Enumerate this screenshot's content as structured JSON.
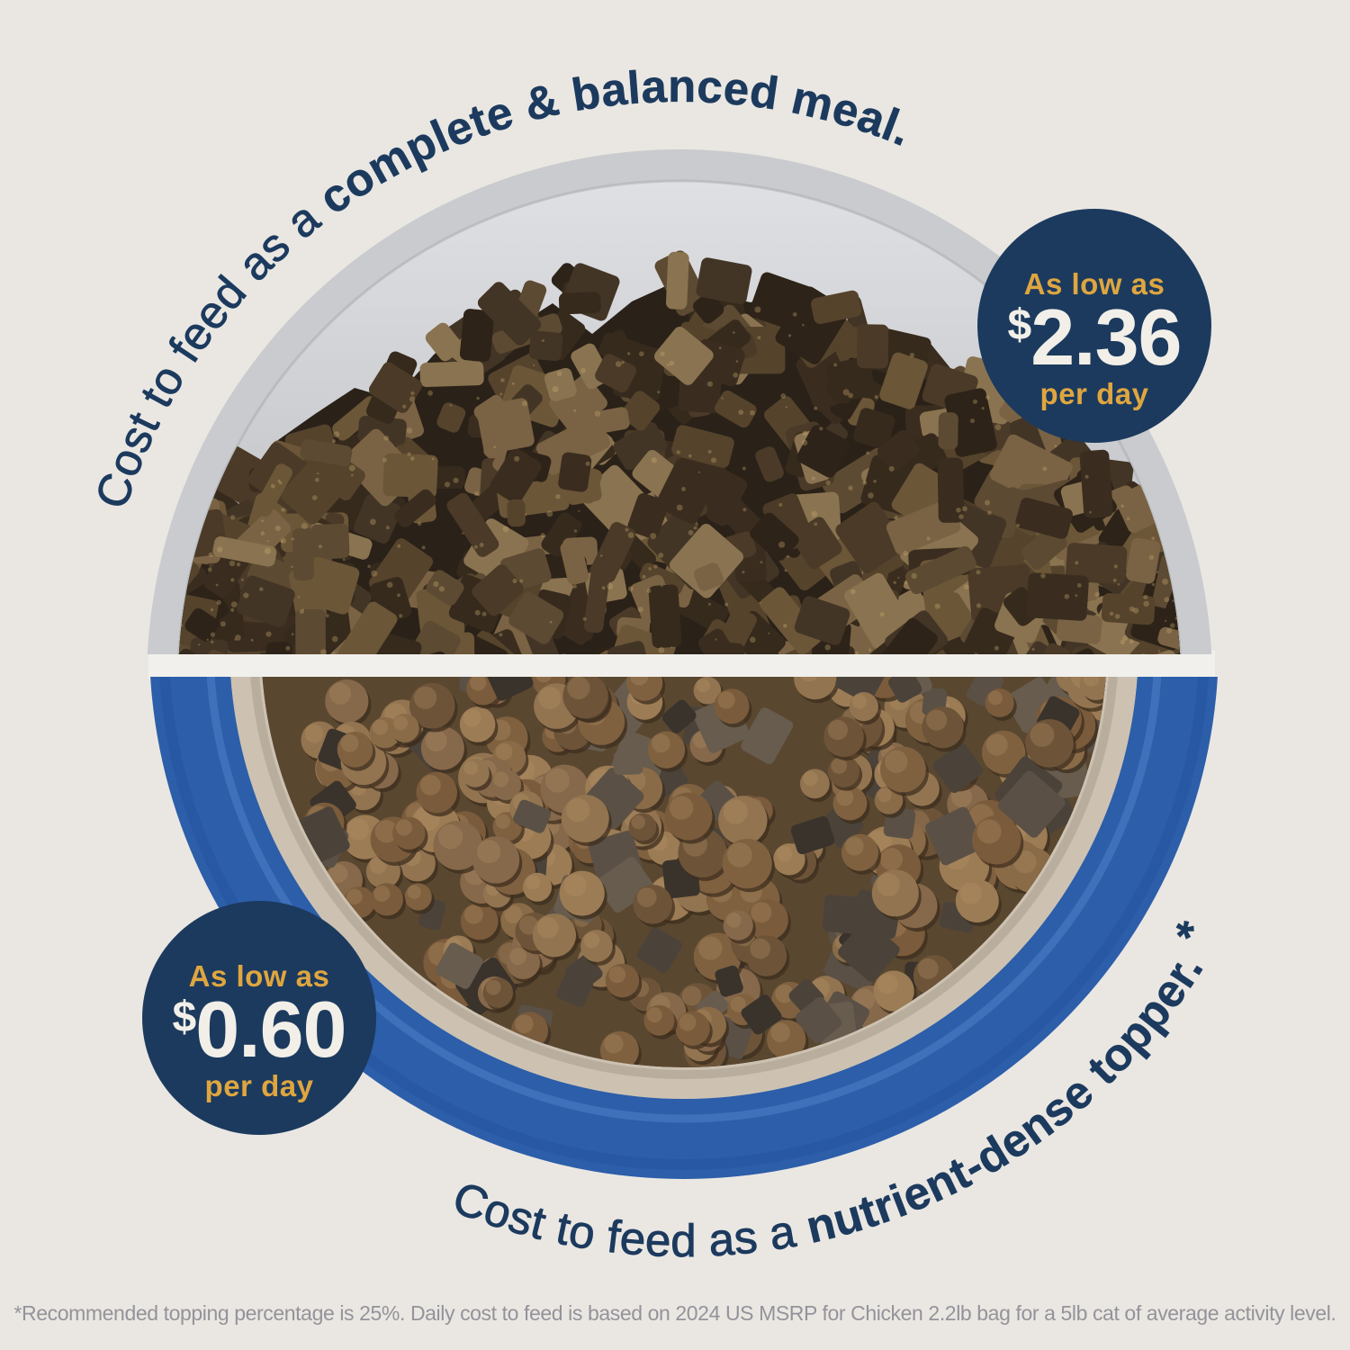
{
  "colors": {
    "background": "#eae7e2",
    "navy": "#1c3a5e",
    "gold": "#dfa63f",
    "cream": "#f2efe8",
    "bowl_blue": "#2c5ea9",
    "bowl_gray": "#c9cbce",
    "footnote_gray": "#94939a"
  },
  "top_section": {
    "caption": {
      "regular": "Cost to feed as a ",
      "bold": "complete & balanced meal."
    },
    "badge": {
      "prefix": "As low as",
      "currency": "$",
      "amount": "2.36",
      "suffix": "per day"
    }
  },
  "bottom_section": {
    "caption": {
      "regular": "Cost to feed as a ",
      "bold": "nutrient-dense topper. ",
      "footnote_marker": "*"
    },
    "badge": {
      "prefix": "As low as",
      "currency": "$",
      "amount": "0.60",
      "suffix": "per day"
    }
  },
  "footnote": {
    "text": "*Recommended topping percentage is 25%. Daily cost to feed is based on 2024 US MSRP for Chicken 2.2lb bag for a 5lb cat of average activity level."
  }
}
